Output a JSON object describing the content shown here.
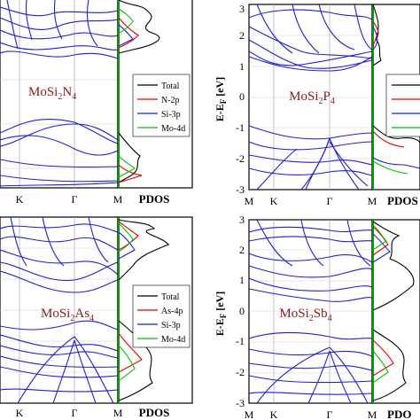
{
  "figure": {
    "panels": [
      {
        "id": "mosi2n4",
        "material_main": "MoSi",
        "sub1": "2",
        "mid": "N",
        "sub2": "4",
        "legend": [
          "Total",
          "N-2p",
          "Si-3p",
          "Mo-4d"
        ]
      },
      {
        "id": "mosi2p4",
        "material_main": "MoSi",
        "sub1": "2",
        "mid": "P",
        "sub2": "4",
        "legend": []
      },
      {
        "id": "mosi2as4",
        "material_main": "MoSi",
        "sub1": "2",
        "mid": "As",
        "sub2": "4",
        "legend": [
          "Total",
          "As-4p",
          "Si-3p",
          "Mo-4d"
        ]
      },
      {
        "id": "mosi2sb4",
        "material_main": "MoSi",
        "sub1": "2",
        "mid": "Sb",
        "sub2": "4",
        "legend": []
      }
    ],
    "kpath_labels": [
      "M",
      "K",
      "Γ",
      "M"
    ],
    "pdos_label": "PDOS",
    "pdos_label_clipped": "PDO",
    "ylabel": "E-E",
    "ylabel_sub": "F",
    "ylabel_unit": " [eV]",
    "yticks": [
      "3",
      "2",
      "1",
      "0",
      "-1",
      "-2",
      "-3"
    ]
  },
  "chart_data": {
    "type": "line",
    "colors": {
      "band": "#1f1fd6",
      "total": "#000000",
      "anion_p": "#e00000",
      "si_3p": "#1f1fd6",
      "mo_4d": "#00c000",
      "fermi": "#00a000",
      "label_text": "#8b1a1a"
    },
    "panels": [
      {
        "material": "MoSi2N4",
        "x_ticks": [
          "M",
          "K",
          "Γ",
          "M"
        ],
        "ylim": [
          -3,
          3
        ],
        "legend": [
          "Total",
          "N-2p",
          "Si-3p",
          "Mo-4d"
        ],
        "bands": [
          {
            "name": "valence_top",
            "x": [
              0,
              0.33,
              0.5,
              0.66,
              1
            ],
            "y": [
              -1.4,
              -1.0,
              -0.8,
              -1.0,
              -1.5
            ]
          },
          {
            "name": "valence_2",
            "x": [
              0,
              0.33,
              0.5,
              0.66,
              1
            ],
            "y": [
              -1.6,
              -1.3,
              -1.1,
              -1.3,
              -1.7
            ]
          },
          {
            "name": "conduction_1",
            "x": [
              0,
              0.33,
              0.5,
              0.66,
              1
            ],
            "y": [
              1.2,
              1.0,
              1.6,
              2.2,
              1.5
            ]
          },
          {
            "name": "conduction_2",
            "x": [
              0,
              0.33,
              0.5,
              0.66,
              1
            ],
            "y": [
              1.8,
              1.9,
              2.6,
              2.3,
              2.0
            ]
          }
        ]
      },
      {
        "material": "MoSi2P4",
        "x_ticks": [
          "M",
          "K",
          "Γ",
          "M"
        ],
        "ylim": [
          -3,
          3
        ],
        "bands": [
          {
            "name": "valence_top",
            "x": [
              0,
              0.33,
              0.5,
              0.66,
              1
            ],
            "y": [
              -1.1,
              -0.9,
              -1.3,
              -1.0,
              -1.2
            ]
          },
          {
            "name": "conduction_1",
            "x": [
              0,
              0.33,
              0.5,
              0.66,
              1
            ],
            "y": [
              0.9,
              0.6,
              1.0,
              1.2,
              0.4
            ]
          },
          {
            "name": "conduction_2",
            "x": [
              0,
              0.33,
              0.5,
              0.66,
              1
            ],
            "y": [
              1.5,
              1.2,
              2.2,
              2.0,
              1.3
            ]
          }
        ]
      },
      {
        "material": "MoSi2As4",
        "x_ticks": [
          "M",
          "K",
          "Γ",
          "M"
        ],
        "ylim": [
          -3,
          3
        ],
        "legend": [
          "Total",
          "As-4p",
          "Si-3p",
          "Mo-4d"
        ],
        "bands": [
          {
            "name": "valence_top",
            "x": [
              0,
              0.33,
              0.5,
              0.66,
              1
            ],
            "y": [
              -0.8,
              -0.6,
              -0.9,
              -0.7,
              -0.9
            ]
          },
          {
            "name": "conduction_1",
            "x": [
              0,
              0.33,
              0.5,
              0.66,
              1
            ],
            "y": [
              0.7,
              0.5,
              1.2,
              1.0,
              0.4
            ]
          }
        ]
      },
      {
        "material": "MoSi2Sb4",
        "x_ticks": [
          "M",
          "K",
          "Γ",
          "M"
        ],
        "ylim": [
          -3,
          3
        ],
        "bands": [
          {
            "name": "valence_top",
            "x": [
              0,
              0.33,
              0.5,
              0.66,
              1
            ],
            "y": [
              -0.5,
              -0.4,
              -0.7,
              -0.5,
              -0.6
            ]
          },
          {
            "name": "conduction_1",
            "x": [
              0,
              0.33,
              0.5,
              0.66,
              1
            ],
            "y": [
              0.5,
              0.3,
              0.9,
              0.8,
              0.2
            ]
          }
        ]
      }
    ]
  }
}
